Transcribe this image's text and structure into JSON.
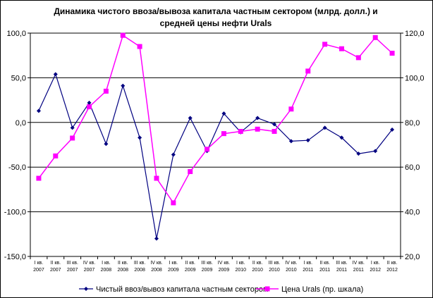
{
  "chart_data": {
    "type": "line",
    "title_line1": "Динамика чистого ввоза/вывоза капитала частным сектором (млрд. долл.) и",
    "title_line2": "средней цены нефти Urals",
    "categories": [
      [
        "I кв.",
        "2007"
      ],
      [
        "II кв.",
        "2007"
      ],
      [
        "III кв.",
        "2007"
      ],
      [
        "IV кв.",
        "2007"
      ],
      [
        "I кв.",
        "2008"
      ],
      [
        "II кв.",
        "2008"
      ],
      [
        "III кв.",
        "2008"
      ],
      [
        "IV кв.",
        "2008"
      ],
      [
        "I кв.",
        "2009"
      ],
      [
        "II кв.",
        "2009"
      ],
      [
        "III кв.",
        "2009"
      ],
      [
        "IV кв.",
        "2009"
      ],
      [
        "I кв.",
        "2010"
      ],
      [
        "II кв.",
        "2010"
      ],
      [
        "III кв.",
        "2010"
      ],
      [
        "IV кв.",
        "2010"
      ],
      [
        "I кв.",
        "2011"
      ],
      [
        "II кв.",
        "2011"
      ],
      [
        "III кв.",
        "2011"
      ],
      [
        "IV кв.",
        "2011"
      ],
      [
        "I кв.",
        "2012"
      ],
      [
        "II кв.",
        "2012"
      ]
    ],
    "y_left": {
      "min": -150,
      "max": 100,
      "ticks": [
        100,
        50,
        0,
        -50,
        -100,
        -150
      ],
      "tick_labels": [
        "100,0",
        "50,0",
        "0,0",
        "-50,0",
        "-100,0",
        "-150,0"
      ]
    },
    "y_right": {
      "min": 20,
      "max": 120,
      "ticks": [
        120,
        100,
        80,
        60,
        40,
        20
      ],
      "tick_labels": [
        "120,0",
        "100,0",
        "80,0",
        "60,0",
        "40,0",
        "20,0"
      ]
    },
    "grid": "horizontal",
    "legend_position": "bottom",
    "series": [
      {
        "name": "Чистый ввоз/вывоз капитала частным сектором",
        "axis": "left",
        "color": "#000080",
        "marker": "diamond",
        "values": [
          13,
          54,
          -6,
          22,
          -24,
          41,
          -17,
          -130,
          -36,
          5,
          -32,
          10,
          -11,
          5,
          -2,
          -21,
          -20,
          -6,
          -17,
          -35,
          -32,
          -8
        ]
      },
      {
        "name": "Цена Urals (пр. шкала)",
        "axis": "right",
        "color": "#ff00ff",
        "marker": "square",
        "values": [
          55,
          65,
          73,
          87,
          94,
          119,
          114,
          55,
          44,
          58,
          68,
          75,
          76,
          77,
          76,
          86,
          103,
          115,
          113,
          109,
          118,
          111
        ]
      }
    ]
  }
}
